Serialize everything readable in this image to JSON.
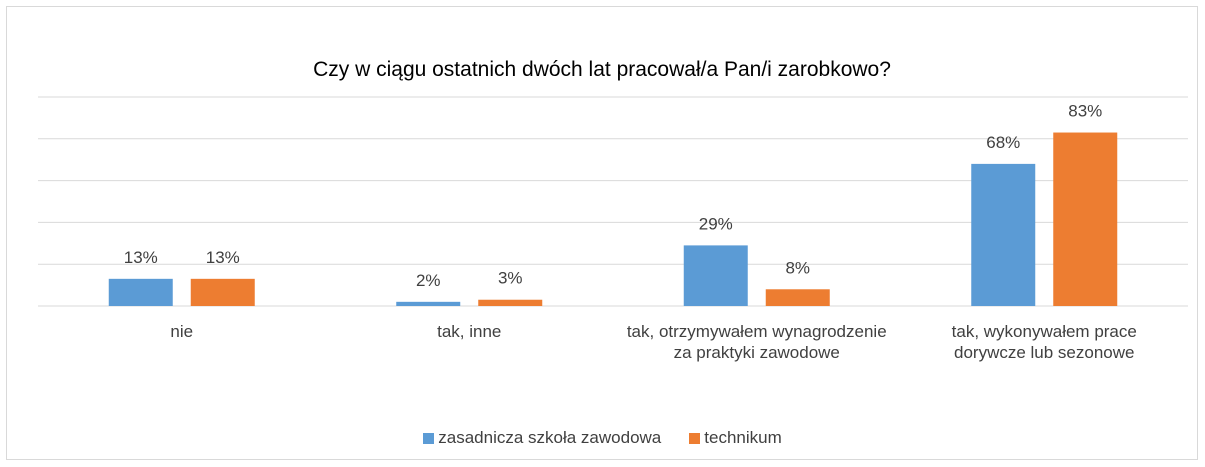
{
  "chart_data": {
    "type": "bar",
    "title": "Czy w ciągu ostatnich dwóch lat pracował/a Pan/i zarobkowo?",
    "categories": [
      "nie",
      "tak, inne",
      "tak, otrzymywałem wynagrodzenie za praktyki zawodowe",
      "tak, wykonywałem prace dorywcze lub sezonowe"
    ],
    "series": [
      {
        "name": "zasadnicza szkoła zawodowa",
        "color": "#5b9bd5",
        "values": [
          13,
          2,
          29,
          68
        ],
        "value_labels": [
          "13%",
          "2%",
          "29%",
          "68%"
        ]
      },
      {
        "name": "technikum",
        "color": "#ed7d31",
        "values": [
          13,
          3,
          8,
          83
        ],
        "value_labels": [
          "13%",
          "3%",
          "8%",
          "83%"
        ]
      }
    ],
    "ylim": [
      0,
      100
    ],
    "yticks": [
      0,
      20,
      40,
      60,
      80,
      100
    ],
    "grid": true,
    "legend": "bottom"
  }
}
